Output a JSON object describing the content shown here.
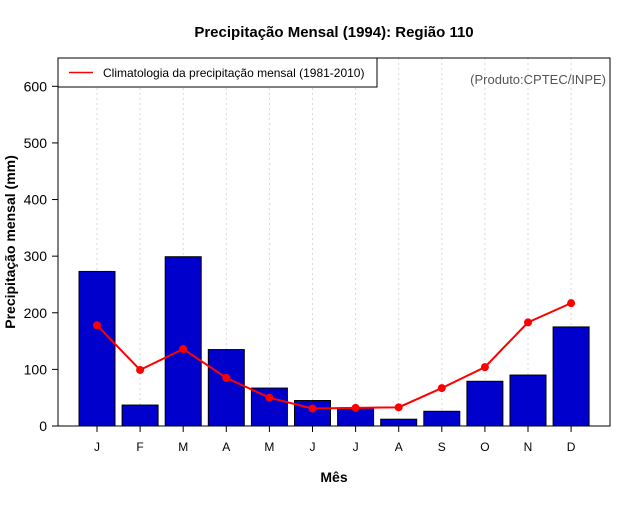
{
  "chart_data": {
    "type": "bar",
    "title": "Precipitação Mensal (1994): Região 110",
    "xlabel": "Mês",
    "ylabel": "Precipitação mensal (mm)",
    "ylim": [
      0,
      650
    ],
    "yticks": [
      0,
      100,
      200,
      300,
      400,
      500,
      600
    ],
    "categories": [
      "J",
      "F",
      "M",
      "A",
      "M",
      "J",
      "J",
      "A",
      "S",
      "O",
      "N",
      "D"
    ],
    "series": [
      {
        "name": "Precipitação mensal (1994)",
        "type": "bar",
        "color": "#0000CC",
        "values": [
          273,
          37,
          299,
          135,
          67,
          45,
          32,
          12,
          26,
          79,
          90,
          175
        ]
      },
      {
        "name": "Climatologia da precipitação mensal (1981-2010)",
        "type": "line",
        "color": "#FF0000",
        "values": [
          178,
          99,
          136,
          85,
          50,
          31,
          32,
          33,
          67,
          104,
          183,
          217
        ]
      }
    ],
    "legend": {
      "position": "top-left",
      "entries": [
        "Climatologia da precipitação mensal (1981-2010)"
      ]
    },
    "annotation": "(Produto:CPTEC/INPE)",
    "grid": "vertical dotted"
  }
}
